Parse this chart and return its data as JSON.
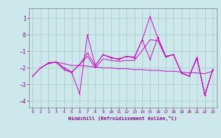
{
  "xlabel": "Windchill (Refroidissement éolien,°C)",
  "bg_color": "#cce8ea",
  "grid_color": "#aacccc",
  "line_color": "#cc00cc",
  "xlim": [
    -0.5,
    23.5
  ],
  "ylim": [
    -4.4,
    1.6
  ],
  "xticks": [
    0,
    1,
    2,
    3,
    4,
    5,
    6,
    7,
    8,
    9,
    10,
    11,
    12,
    13,
    14,
    15,
    16,
    17,
    18,
    19,
    20,
    21,
    22,
    23
  ],
  "yticks": [
    -4,
    -3,
    -2,
    -1,
    0,
    1
  ],
  "line1_x": [
    0,
    1,
    2,
    3,
    4,
    5,
    6,
    7,
    8,
    9,
    10,
    11,
    12,
    13,
    14,
    15,
    16,
    17,
    18,
    19,
    20,
    21,
    22,
    23
  ],
  "line1_y": [
    -2.5,
    -2.0,
    -1.7,
    -1.65,
    -2.1,
    -2.3,
    -3.55,
    0.0,
    -1.85,
    -1.2,
    -1.4,
    -1.45,
    -1.3,
    -1.35,
    -0.3,
    -1.5,
    -0.15,
    -1.3,
    -1.2,
    -2.3,
    -2.5,
    -1.35,
    -3.65,
    -2.1
  ],
  "line2_x": [
    0,
    1,
    2,
    3,
    4,
    5,
    6,
    7,
    8,
    9,
    10,
    11,
    12,
    13,
    14,
    15,
    16,
    17,
    18,
    19,
    20,
    21,
    22,
    23
  ],
  "line2_y": [
    -2.5,
    -2.0,
    -1.75,
    -1.65,
    -1.75,
    -1.85,
    -1.85,
    -1.9,
    -1.95,
    -2.0,
    -2.0,
    -2.05,
    -2.05,
    -2.1,
    -2.1,
    -2.15,
    -2.15,
    -2.2,
    -2.2,
    -2.25,
    -2.3,
    -2.3,
    -2.35,
    -2.2
  ],
  "line3_x": [
    2,
    3,
    4,
    5,
    6,
    7,
    8,
    9,
    10,
    11,
    12,
    13,
    14,
    15,
    16,
    17,
    18,
    19,
    20,
    21,
    22,
    23
  ],
  "line3_y": [
    -1.7,
    -1.65,
    -2.0,
    -2.25,
    -1.8,
    -1.1,
    -1.85,
    -1.2,
    -1.35,
    -1.5,
    -1.3,
    -1.4,
    -0.3,
    1.1,
    -0.2,
    -1.3,
    -1.2,
    -2.3,
    -2.5,
    -1.4,
    -3.65,
    -2.1
  ],
  "line4_x": [
    2,
    3,
    4,
    5,
    6,
    7,
    8,
    9,
    10,
    11,
    12,
    13,
    14,
    15,
    16,
    17,
    18,
    19,
    20,
    21,
    22,
    23
  ],
  "line4_y": [
    -1.7,
    -1.65,
    -2.0,
    -2.25,
    -1.8,
    -1.3,
    -2.0,
    -1.45,
    -1.55,
    -1.6,
    -1.55,
    -1.55,
    -0.95,
    -0.3,
    -0.35,
    -1.35,
    -1.2,
    -2.3,
    -2.5,
    -1.4,
    -3.65,
    -2.1
  ]
}
